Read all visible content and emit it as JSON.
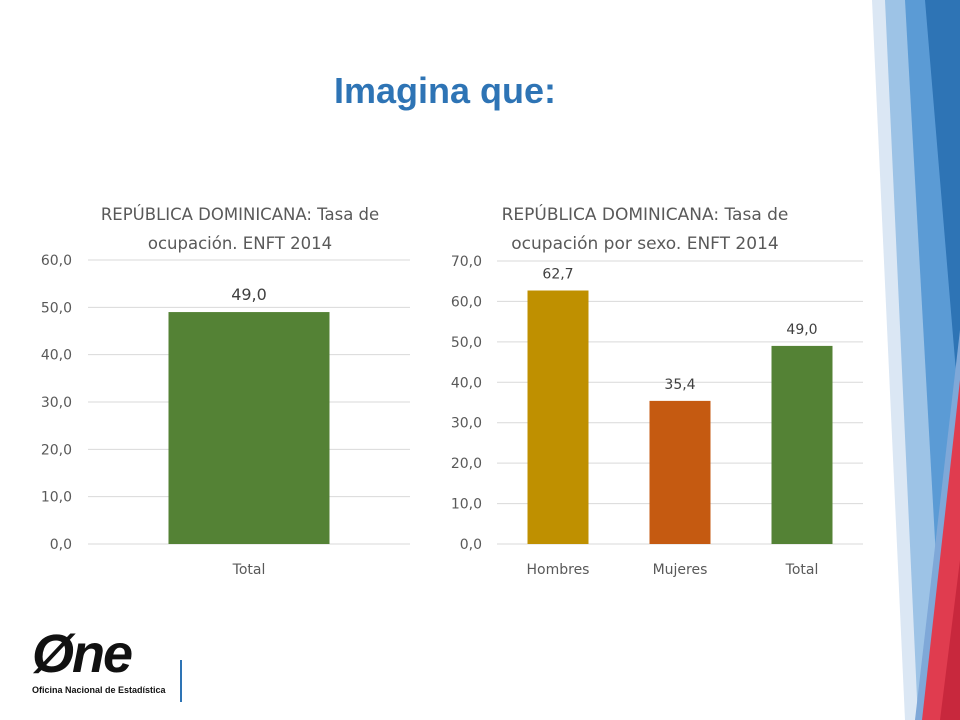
{
  "slide": {
    "title": "Imagina que:"
  },
  "logo": {
    "wordmark": "Øne",
    "subtitle": "Oficina Nacional de Estadística"
  },
  "colors": {
    "accent_blue": "#2e74b5",
    "deco_blue": "#5b9bd5",
    "deco_red": "#e03c4f",
    "green": "#548235",
    "gold": "#bf9000",
    "orange": "#c55a11"
  },
  "chart_data": [
    {
      "type": "bar",
      "title": "REPÚBLICA DOMINICANA: Tasa de ocupación. ENFT 2014",
      "title_lines": [
        "REPÚBLICA DOMINICANA: Tasa de",
        "ocupación. ENFT 2014"
      ],
      "categories": [
        "Total"
      ],
      "values": [
        49.0
      ],
      "value_labels": [
        "49,0"
      ],
      "bar_colors": [
        "#548235"
      ],
      "ylim": [
        0,
        60
      ],
      "yticks": [
        0,
        10,
        20,
        30,
        40,
        50,
        60
      ],
      "ytick_labels": [
        "0,0",
        "10,0",
        "20,0",
        "30,0",
        "40,0",
        "50,0",
        "60,0"
      ],
      "grid": true,
      "legend": "none"
    },
    {
      "type": "bar",
      "title": "REPÚBLICA DOMINICANA: Tasa de ocupación por sexo. ENFT 2014",
      "title_lines": [
        "REPÚBLICA DOMINICANA: Tasa de",
        "ocupación por sexo. ENFT 2014"
      ],
      "categories": [
        "Hombres",
        "Mujeres",
        "Total"
      ],
      "values": [
        62.7,
        35.4,
        49.0
      ],
      "value_labels": [
        "62,7",
        "35,4",
        "49,0"
      ],
      "bar_colors": [
        "#bf9000",
        "#c55a11",
        "#548235"
      ],
      "ylim": [
        0,
        70
      ],
      "yticks": [
        0,
        10,
        20,
        30,
        40,
        50,
        60,
        70
      ],
      "ytick_labels": [
        "0,0",
        "10,0",
        "20,0",
        "30,0",
        "40,0",
        "50,0",
        "60,0",
        "70,0"
      ],
      "grid": true,
      "legend": "none"
    }
  ]
}
